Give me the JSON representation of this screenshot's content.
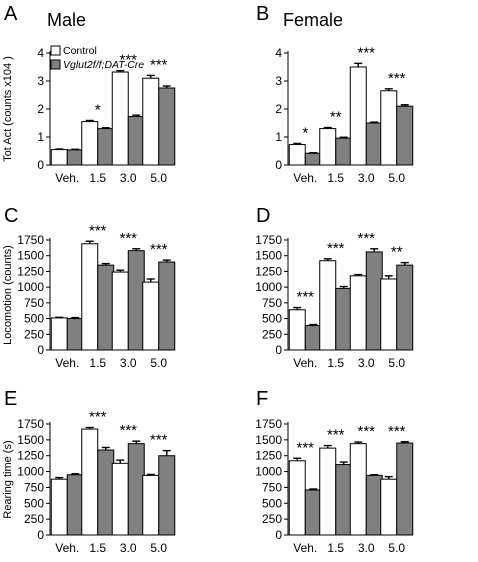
{
  "colors": {
    "control": "#ffffff",
    "mutant": "#808080",
    "stroke": "#000000"
  },
  "legend": {
    "control": "Control",
    "mutant_italic": "Vglut2f/f;DAT-Cre"
  },
  "chart_data": [
    {
      "panel": "A",
      "title": "Male",
      "type": "bar",
      "ylabel": "Tot Act (counts x104 )",
      "ylim": [
        0,
        4
      ],
      "yticks": [
        "0",
        "1",
        "2",
        "3",
        "4"
      ],
      "categories": [
        "Veh.",
        "1.5",
        "3.0",
        "5.0"
      ],
      "series": [
        {
          "name": "Control",
          "values": [
            0.55,
            1.55,
            3.32,
            3.1
          ],
          "errors": [
            0.02,
            0.04,
            0.05,
            0.1
          ]
        },
        {
          "name": "Vglut2f/f;DAT-Cre",
          "values": [
            0.54,
            1.3,
            1.73,
            2.75
          ],
          "errors": [
            0.02,
            0.03,
            0.05,
            0.07
          ]
        }
      ],
      "significance": [
        "",
        "*",
        "***",
        "***"
      ]
    },
    {
      "panel": "B",
      "title": "Female",
      "type": "bar",
      "ylabel": "",
      "ylim": [
        0,
        4
      ],
      "yticks": [
        "0",
        "1",
        "2",
        "3",
        "4"
      ],
      "categories": [
        "Veh.",
        "1.5",
        "3.0",
        "5.0"
      ],
      "series": [
        {
          "name": "Control",
          "values": [
            0.73,
            1.3,
            3.5,
            2.65
          ],
          "errors": [
            0.04,
            0.04,
            0.13,
            0.07
          ]
        },
        {
          "name": "Vglut2f/f;DAT-Cre",
          "values": [
            0.42,
            0.96,
            1.5,
            2.1
          ],
          "errors": [
            0.02,
            0.03,
            0.03,
            0.05
          ]
        }
      ],
      "significance": [
        "*",
        "**",
        "***",
        "***"
      ]
    },
    {
      "panel": "C",
      "title": "",
      "type": "bar",
      "ylabel": "Locomotion (counts)",
      "ylim": [
        0,
        1750
      ],
      "yticks": [
        "0",
        "250",
        "500",
        "750",
        "1000",
        "1250",
        "1500",
        "1750"
      ],
      "categories": [
        "Veh.",
        "1.5",
        "3.0",
        "5.0"
      ],
      "series": [
        {
          "name": "Control",
          "values": [
            510,
            1690,
            1240,
            1080
          ],
          "errors": [
            10,
            40,
            30,
            50
          ]
        },
        {
          "name": "Vglut2f/f;DAT-Cre",
          "values": [
            500,
            1350,
            1580,
            1400
          ],
          "errors": [
            15,
            25,
            30,
            30
          ]
        }
      ],
      "significance": [
        "",
        "***",
        "***",
        "***"
      ]
    },
    {
      "panel": "D",
      "title": "",
      "type": "bar",
      "ylabel": "",
      "ylim": [
        0,
        1750
      ],
      "yticks": [
        "0",
        "250",
        "500",
        "750",
        "1000",
        "1250",
        "1500",
        "1750"
      ],
      "categories": [
        "Veh.",
        "1.5",
        "3.0",
        "5.0"
      ],
      "series": [
        {
          "name": "Control",
          "values": [
            640,
            1420,
            1180,
            1130
          ],
          "errors": [
            35,
            30,
            20,
            50
          ]
        },
        {
          "name": "Vglut2f/f;DAT-Cre",
          "values": [
            390,
            980,
            1560,
            1350
          ],
          "errors": [
            15,
            30,
            50,
            40
          ]
        }
      ],
      "significance": [
        "***",
        "***",
        "***",
        "**"
      ]
    },
    {
      "panel": "E",
      "title": "",
      "type": "bar",
      "ylabel": "Rearing time (s)",
      "ylim": [
        0,
        1750
      ],
      "yticks": [
        "0",
        "250",
        "500",
        "750",
        "1000",
        "1250",
        "1500",
        "1750"
      ],
      "categories": [
        "Veh.",
        "1.5",
        "3.0",
        "5.0"
      ],
      "series": [
        {
          "name": "Control",
          "values": [
            880,
            1670,
            1130,
            940
          ],
          "errors": [
            25,
            25,
            50,
            15
          ]
        },
        {
          "name": "Vglut2f/f;DAT-Cre",
          "values": [
            950,
            1340,
            1440,
            1250
          ],
          "errors": [
            15,
            40,
            40,
            80
          ]
        }
      ],
      "significance": [
        "",
        "***",
        "***",
        "***"
      ]
    },
    {
      "panel": "F",
      "title": "",
      "type": "bar",
      "ylabel": "",
      "ylim": [
        0,
        1750
      ],
      "yticks": [
        "0",
        "250",
        "500",
        "750",
        "1000",
        "1250",
        "1500",
        "1750"
      ],
      "categories": [
        "Veh.",
        "1.5",
        "3.0",
        "5.0"
      ],
      "series": [
        {
          "name": "Control",
          "values": [
            1170,
            1370,
            1440,
            880
          ],
          "errors": [
            40,
            40,
            25,
            40
          ]
        },
        {
          "name": "Vglut2f/f;DAT-Cre",
          "values": [
            710,
            1110,
            940,
            1450
          ],
          "errors": [
            15,
            40,
            10,
            20
          ]
        }
      ],
      "significance": [
        "***",
        "***",
        "***",
        "***"
      ]
    }
  ]
}
